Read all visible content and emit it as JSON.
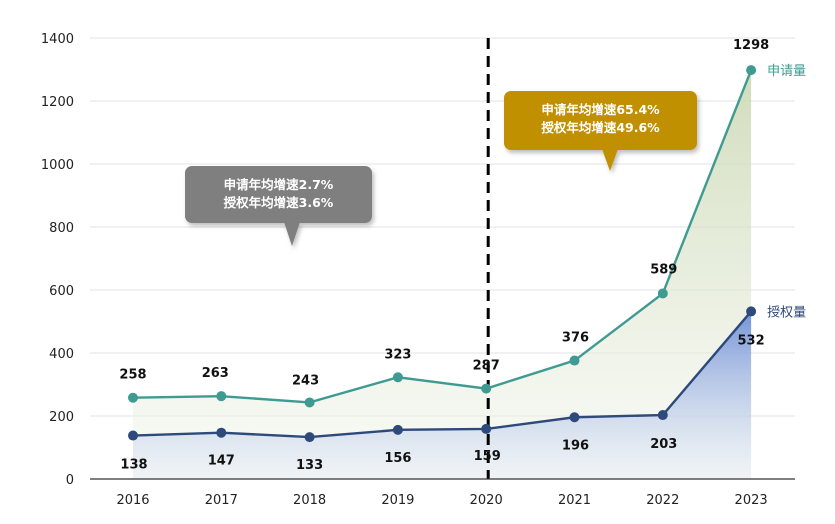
{
  "chart_data": {
    "type": "line",
    "x": [
      "2016",
      "2017",
      "2018",
      "2019",
      "2020",
      "2021",
      "2022",
      "2023"
    ],
    "series": [
      {
        "name": "申请量",
        "values": [
          258,
          263,
          243,
          323,
          287,
          376,
          589,
          1298
        ],
        "color": "#3f9b92"
      },
      {
        "name": "授权量",
        "values": [
          138,
          147,
          133,
          156,
          159,
          196,
          203,
          532
        ],
        "color": "#2e4a7a"
      }
    ],
    "ylim": [
      0,
      1400
    ],
    "yticks": [
      "0",
      "200",
      "400",
      "600",
      "800",
      "1000",
      "1200",
      "1400"
    ],
    "grid": true,
    "divider_at": "2020",
    "annotations": [
      {
        "lines": [
          "申请年均增速2.7%",
          "授权年均增速3.6%"
        ],
        "color": "#7f7f7f"
      },
      {
        "lines": [
          "申请年均增速65.4%",
          "授权年均增速49.6%"
        ],
        "color": "#c09000"
      }
    ]
  }
}
